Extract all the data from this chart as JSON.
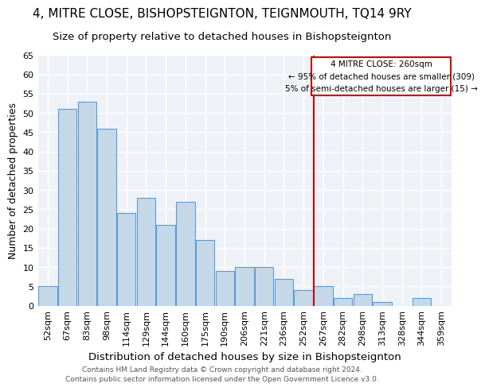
{
  "title": "4, MITRE CLOSE, BISHOPSTEIGNTON, TEIGNMOUTH, TQ14 9RY",
  "subtitle": "Size of property relative to detached houses in Bishopsteignton",
  "xlabel": "Distribution of detached houses by size in Bishopsteignton",
  "ylabel": "Number of detached properties",
  "categories": [
    "52sqm",
    "67sqm",
    "83sqm",
    "98sqm",
    "114sqm",
    "129sqm",
    "144sqm",
    "160sqm",
    "175sqm",
    "190sqm",
    "206sqm",
    "221sqm",
    "236sqm",
    "252sqm",
    "267sqm",
    "282sqm",
    "298sqm",
    "313sqm",
    "328sqm",
    "344sqm",
    "359sqm"
  ],
  "values": [
    5,
    51,
    53,
    46,
    24,
    28,
    21,
    27,
    17,
    9,
    10,
    10,
    7,
    4,
    5,
    2,
    3,
    1,
    0,
    2,
    0
  ],
  "bar_color": "#c5d8e8",
  "bar_edge_color": "#5b9bd5",
  "vline_x": 13.5,
  "vline_color": "#cc0000",
  "annotation_title": "4 MITRE CLOSE: 260sqm",
  "annotation_line1": "← 95% of detached houses are smaller (309)",
  "annotation_line2": "5% of semi-detached houses are larger (15) →",
  "annotation_box_color": "#cc0000",
  "ylim": [
    0,
    65
  ],
  "yticks": [
    0,
    5,
    10,
    15,
    20,
    25,
    30,
    35,
    40,
    45,
    50,
    55,
    60,
    65
  ],
  "footer_line1": "Contains HM Land Registry data © Crown copyright and database right 2024.",
  "footer_line2": "Contains public sector information licensed under the Open Government Licence v3.0.",
  "bg_color": "#eef2f7",
  "grid_color": "#ffffff",
  "title_fontsize": 11,
  "subtitle_fontsize": 9.5,
  "axis_label_fontsize": 9,
  "tick_fontsize": 8
}
